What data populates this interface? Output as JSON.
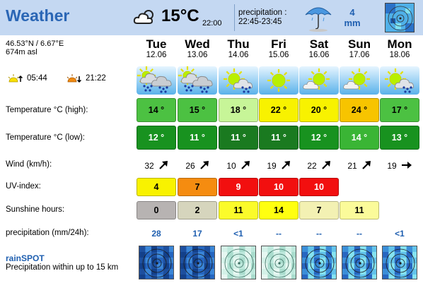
{
  "header": {
    "title": "Weather",
    "current_icon": "partly-cloudy-icon",
    "current_temp": "15°C",
    "current_time": "22:00",
    "precip_label": "precipitation :",
    "precip_time": "22:45-23:45",
    "precip_icon": "umbrella-icon",
    "precip_value": "4",
    "precip_unit": "mm"
  },
  "location": {
    "coords": "46.53°N / 6.67°E",
    "altitude": "674m asl",
    "sunrise": "05:44",
    "sunset": "21:22"
  },
  "rows": {
    "temp_high": "Temperature °C (high):",
    "temp_low": "Temperature °C (low):",
    "wind": "Wind (km/h):",
    "uv": "UV-index:",
    "sunshine": "Sunshine hours:",
    "precipitation": "precipitation (mm/24h):"
  },
  "rainspot": {
    "title": "rainSPOT",
    "subtitle": "Precipitation within up to 15 km"
  },
  "days": [
    {
      "name": "Tue",
      "date": "12.06",
      "icon": "rain-cloud-sun-icon",
      "high": "14 °",
      "high_color": "#4cc142",
      "low": "12 °",
      "low_color": "#18921f",
      "wind": "32",
      "wind_icon": "arrow-northeast-icon",
      "uv": "4",
      "uv_color": "#f8f200",
      "sun": "0",
      "sun_color": "#b7b3b2",
      "precip": "28",
      "radar": "blue"
    },
    {
      "name": "Wed",
      "date": "13.06",
      "icon": "rain-cloud-sun-icon",
      "high": "15 °",
      "high_color": "#4cc142",
      "low": "11 °",
      "low_color": "#18921f",
      "wind": "26",
      "wind_icon": "arrow-northeast-icon",
      "uv": "7",
      "uv_color": "#f58c10",
      "sun": "2",
      "sun_color": "#d6d5bd",
      "precip": "17",
      "radar": "blue"
    },
    {
      "name": "Thu",
      "date": "14.06",
      "icon": "sun-rain-cloud-icon",
      "high": "18 °",
      "high_color": "#c7f598",
      "low": "11 °",
      "low_color": "#1a7a20",
      "wind": "10",
      "wind_icon": "arrow-northeast-icon",
      "uv": "9",
      "uv_color": "#f20f0f",
      "sun": "11",
      "sun_color": "#fbfb2a",
      "precip": "<1",
      "radar": "light"
    },
    {
      "name": "Fri",
      "date": "15.06",
      "icon": "sun-icon",
      "high": "22 °",
      "high_color": "#f8f200",
      "low": "11 °",
      "low_color": "#1a7a20",
      "wind": "19",
      "wind_icon": "arrow-northeast-icon",
      "uv": "10",
      "uv_color": "#f20f0f",
      "sun": "14",
      "sun_color": "#ffff10",
      "precip": "--",
      "radar": "light"
    },
    {
      "name": "Sat",
      "date": "16.06",
      "icon": "sun-cloud-icon",
      "high": "20 °",
      "high_color": "#f8f200",
      "low": "12 °",
      "low_color": "#18921f",
      "wind": "22",
      "wind_icon": "arrow-northeast-icon",
      "uv": "10",
      "uv_color": "#f20f0f",
      "sun": "7",
      "sun_color": "#f3f1b3",
      "precip": "--",
      "radar": "mixed"
    },
    {
      "name": "Sun",
      "date": "17.06",
      "icon": "sun-cloud-icon",
      "high": "24 °",
      "high_color": "#f7c400",
      "low": "14 °",
      "low_color": "#3ab535",
      "wind": "21",
      "wind_icon": "arrow-northeast-icon",
      "uv": "",
      "uv_color": "",
      "sun": "11",
      "sun_color": "#fbfb9a",
      "precip": "--",
      "radar": "mixed"
    },
    {
      "name": "Mon",
      "date": "18.06",
      "icon": "sun-rain-cloud-icon",
      "high": "17 °",
      "high_color": "#4cc142",
      "low": "13 °",
      "low_color": "#18921f",
      "wind": "19",
      "wind_icon": "arrow-east-icon",
      "uv": "",
      "uv_color": "",
      "sun": "",
      "sun_color": "",
      "precip": "<1",
      "radar": "mixed"
    }
  ]
}
